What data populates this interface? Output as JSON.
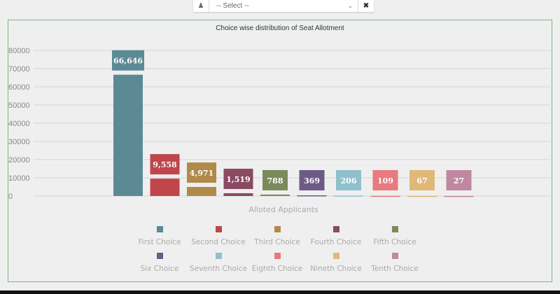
{
  "selector": {
    "user_icon": "user-icon",
    "placeholder": "-- Select --",
    "clear_icon": "close-icon"
  },
  "chart_data": {
    "type": "bar",
    "title": "Choice wise distribution of Seat Allotment",
    "xlabel": "Alloted Applicants",
    "ylabel": "",
    "ylim": [
      0,
      80000
    ],
    "yticks": [
      0,
      10000,
      20000,
      30000,
      40000,
      50000,
      60000,
      70000,
      80000
    ],
    "categories": [
      "First Choice",
      "Second Choice",
      "Third Choice",
      "Fourth Choice",
      "Fifth Choice",
      "Six Choice",
      "Seventh Choice",
      "Eighth Choice",
      "Nineth Choice",
      "Tenth Choice"
    ],
    "values": [
      66646,
      9558,
      4971,
      1519,
      788,
      369,
      206,
      109,
      67,
      27
    ],
    "data_labels": [
      "66,646",
      "9,558",
      "4,971",
      "1,519",
      "788",
      "369",
      "206",
      "109",
      "67",
      "27"
    ],
    "colors": [
      "#5b8a94",
      "#c0464b",
      "#b08a4a",
      "#8a4a62",
      "#7a8a5a",
      "#6e5a86",
      "#8fc0cc",
      "#e87a80",
      "#e0b878",
      "#c088a0"
    ],
    "legend_position": "bottom"
  }
}
